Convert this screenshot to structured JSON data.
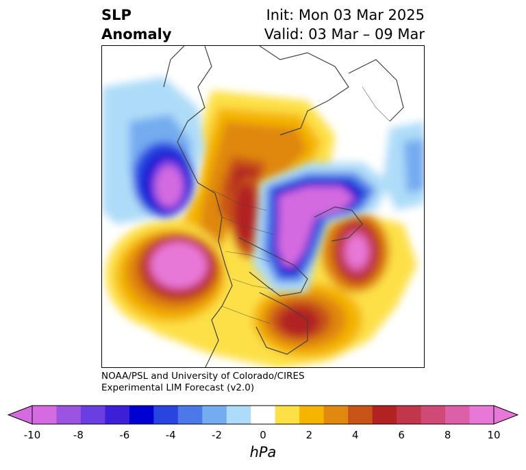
{
  "header": {
    "title_line1": "SLP",
    "title_line2": "Anomaly",
    "init_text": "Init: Mon 03 Mar 2025",
    "valid_text": "Valid: 03 Mar – 09 Mar"
  },
  "credit": {
    "line1": "NOAA/PSL and University of Colorado/CIRES",
    "line2": "Experimental LIM Forecast (v2.0)"
  },
  "colorbar": {
    "unit": "hPa",
    "tick_labels": [
      "-10",
      "-8",
      "-6",
      "-4",
      "-2",
      "0",
      "2",
      "4",
      "6",
      "8",
      "10"
    ],
    "levels": [
      -10,
      -9,
      -8,
      -7,
      -6,
      -5,
      -4,
      -3,
      -2,
      -1,
      1,
      2,
      3,
      4,
      5,
      6,
      7,
      8,
      9,
      10
    ],
    "colors": [
      "#d46be0",
      "#9b54e0",
      "#6a3ee0",
      "#3c20d8",
      "#0000d0",
      "#2a44e0",
      "#4c78e8",
      "#74acf0",
      "#aedcf8",
      "#ffffff",
      "#fde046",
      "#f4b400",
      "#e08810",
      "#c85418",
      "#b22222",
      "#c0364a",
      "#d04a78",
      "#dc60a8",
      "#e878d8"
    ],
    "extend_low_color": "#d46be0",
    "extend_high_color": "#e878d8"
  },
  "map": {
    "projection": "north-polar-stereographic",
    "land_outline_color": "#404040"
  }
}
